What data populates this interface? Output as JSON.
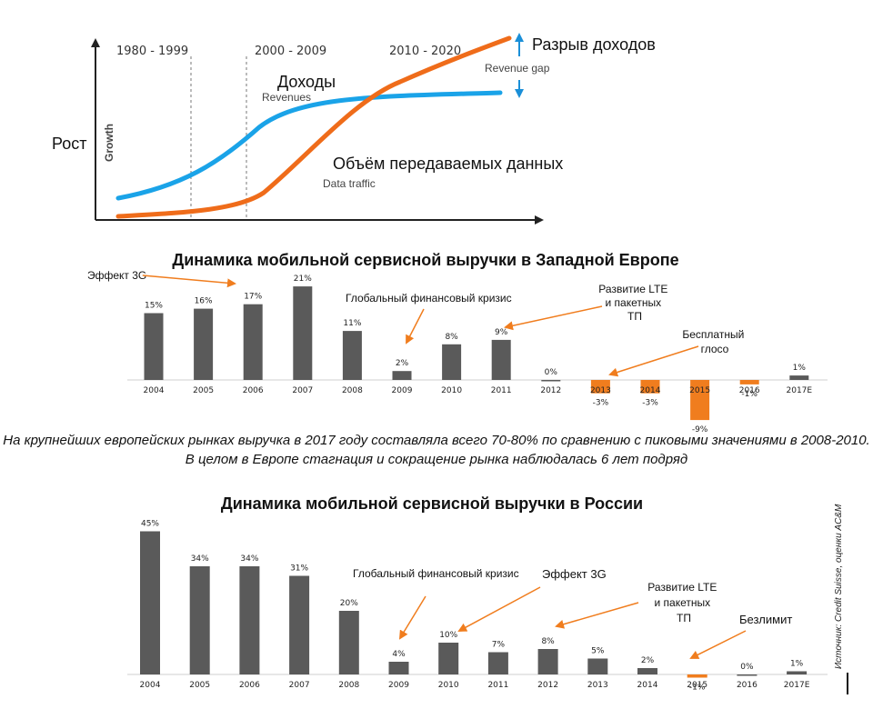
{
  "growth_chart": {
    "y_axis_ru": "Рост",
    "y_axis_en": "Growth",
    "periods": [
      "1980 - 1999",
      "2000 - 2009",
      "2010 - 2020"
    ],
    "revenues_ru": "Доходы",
    "revenues_en": "Revenues",
    "traffic_ru": "Объём передаваемых данных",
    "traffic_en": "Data traffic",
    "gap_ru": "Разрыв доходов",
    "gap_en": "Revenue gap",
    "colors": {
      "revenues": "#1aa3e8",
      "traffic": "#ef6c1a",
      "gap_arrow": "#1a8fd8"
    }
  },
  "chart_data": [
    {
      "type": "bar",
      "title": "Динамика мобильной сервисной выручки в Западной Европе",
      "categories": [
        "2004",
        "2005",
        "2006",
        "2007",
        "2008",
        "2009",
        "2010",
        "2011",
        "2012",
        "2013",
        "2014",
        "2015",
        "2016",
        "2017E"
      ],
      "values": [
        15,
        16,
        17,
        21,
        11,
        2,
        8,
        9,
        0,
        -3,
        -3,
        -9,
        -1,
        1
      ],
      "value_labels": [
        "15%",
        "16%",
        "17%",
        "21%",
        "11%",
        "2%",
        "8%",
        "9%",
        "0%",
        "-3%",
        "-3%",
        "-9%",
        "-1%",
        "1%"
      ],
      "colors": {
        "positive": "#5a5a5a",
        "negative": "#f07d1e"
      },
      "annotations": [
        {
          "text": "Эффект 3G"
        },
        {
          "text": "Глобальный финансовый кризис"
        },
        {
          "text": "Развитие LTE и пакетных ТП"
        },
        {
          "text": "Бесплатный глосо"
        }
      ]
    },
    {
      "type": "bar",
      "title": "Динамика мобильной сервисной выручки в России",
      "categories": [
        "2004",
        "2005",
        "2006",
        "2007",
        "2008",
        "2009",
        "2010",
        "2011",
        "2012",
        "2013",
        "2014",
        "2015",
        "2016",
        "2017E"
      ],
      "values": [
        45,
        34,
        34,
        31,
        20,
        4,
        10,
        7,
        8,
        5,
        2,
        -1,
        0,
        1
      ],
      "value_labels": [
        "45%",
        "34%",
        "34%",
        "31%",
        "20%",
        "4%",
        "10%",
        "7%",
        "8%",
        "5%",
        "2%",
        "-1%",
        "0%",
        "1%"
      ],
      "colors": {
        "positive": "#5a5a5a",
        "negative": "#f07d1e"
      },
      "annotations": [
        {
          "text": "Глобальный финансовый кризис"
        },
        {
          "text": "Эффект 3G"
        },
        {
          "text": "Развитие LTE и пакетных ТП"
        },
        {
          "text": "Безлимит"
        }
      ]
    }
  ],
  "note": "На крупнейших европейских рынках выручка в 2017 году составляла всего 70-80% по сравнению с пиковыми значениями в 2008-2010. В целом в Европе стагнация и сокращение рынка наблюдалась 6 лет подряд",
  "source": "Источник: Credit Suisse, оценки AC&M"
}
